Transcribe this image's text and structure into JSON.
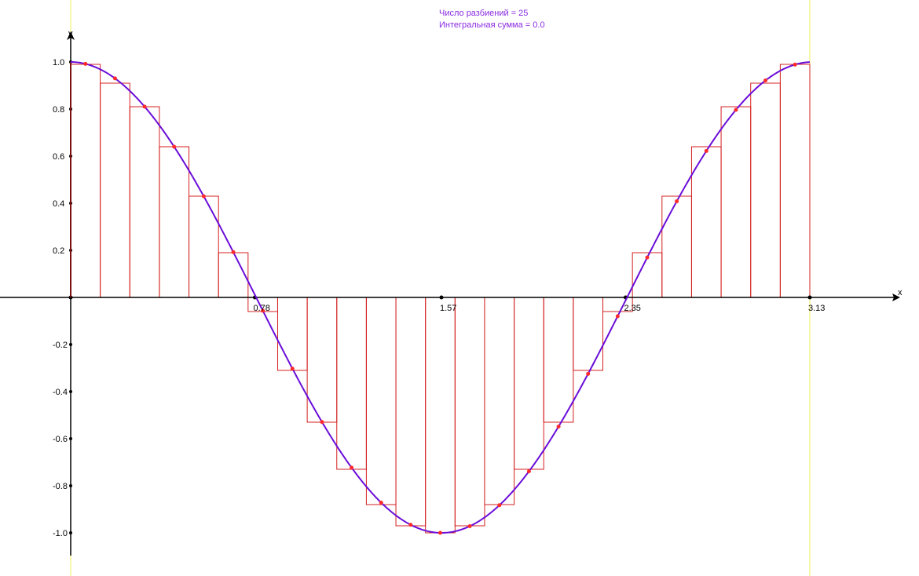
{
  "info": {
    "partitions_line": "Число разбиений = 25",
    "sum_line": "Интегральная сумма = 0.0"
  },
  "chart_data": {
    "type": "line",
    "function": "cos(2x)",
    "partitions": 25,
    "x_range": [
      0,
      3.13
    ],
    "xlabel": "x",
    "ylabel": "y",
    "x_ticks": [
      {
        "value": 0.78,
        "label": "0.78"
      },
      {
        "value": 1.57,
        "label": "1.57"
      },
      {
        "value": 2.35,
        "label": "2.35"
      },
      {
        "value": 3.13,
        "label": "3.13"
      }
    ],
    "y_ticks": [
      {
        "value": 1.0,
        "label": "1.0"
      },
      {
        "value": 0.8,
        "label": "0.8"
      },
      {
        "value": 0.6,
        "label": "0.6"
      },
      {
        "value": 0.4,
        "label": "0.4"
      },
      {
        "value": 0.2,
        "label": "0.2"
      },
      {
        "value": -0.2,
        "label": "-0.2"
      },
      {
        "value": -0.4,
        "label": "-0.4"
      },
      {
        "value": -0.6,
        "label": "-0.6"
      },
      {
        "value": -0.8,
        "label": "-0.8"
      },
      {
        "value": -1.0,
        "label": "-1.0"
      }
    ],
    "rectangle_heights": [
      0.99,
      0.91,
      0.81,
      0.64,
      0.43,
      0.19,
      -0.06,
      -0.31,
      -0.53,
      -0.73,
      -0.88,
      -0.97,
      -1.0,
      -0.97,
      -0.88,
      -0.73,
      -0.53,
      -0.31,
      -0.06,
      0.19,
      0.43,
      0.64,
      0.81,
      0.91,
      0.99
    ],
    "colors": {
      "curve": "#6a0dd8",
      "rectangles": "#d42020",
      "sample_points": "#ff2a2a",
      "bounds": "#f2f25a",
      "axes": "#000000",
      "info_text": "#8a2be2"
    },
    "grid": false
  }
}
